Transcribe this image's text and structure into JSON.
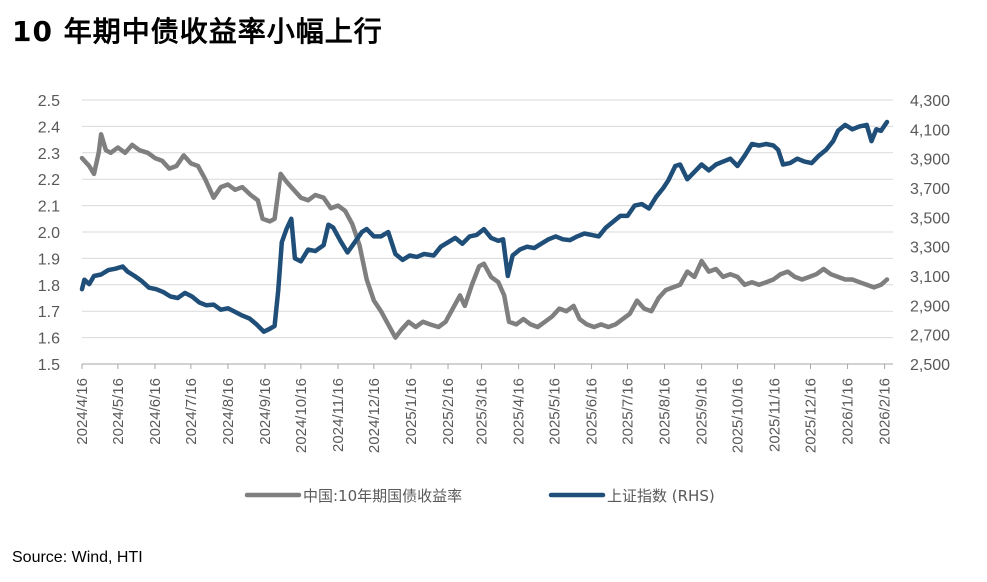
{
  "header": {
    "title": "10 年期中债收益率小幅上行"
  },
  "footer": {
    "source": "Source: Wind, HTI"
  },
  "chart_data": {
    "type": "line",
    "title": "10 年期中债收益率小幅上行",
    "y_left": {
      "ticks": [
        "2.5",
        "2.4",
        "2.3",
        "2.2",
        "2.1",
        "2.0",
        "1.9",
        "1.8",
        "1.7",
        "1.6",
        "1.5"
      ],
      "ylim": [
        1.5,
        2.5
      ]
    },
    "y_right": {
      "ticks": [
        "4,300",
        "4,100",
        "3,900",
        "3,700",
        "3,500",
        "3,300",
        "3,100",
        "2,900",
        "2,700",
        "2,500"
      ],
      "ylim": [
        2500,
        4300
      ]
    },
    "grid": "horizontal",
    "legend_position": "bottom",
    "x_ticks": [
      "2024/4/16",
      "2024/5/16",
      "2024/6/16",
      "2024/7/16",
      "2024/8/16",
      "2024/9/16",
      "2024/10/16",
      "2024/11/16",
      "2024/12/16",
      "2025/1/16",
      "2025/2/16",
      "2025/3/16",
      "2025/4/16",
      "2025/5/16",
      "2025/6/16",
      "2025/7/16",
      "2025/8/16",
      "2025/9/16",
      "2025/10/16",
      "2025/11/16",
      "2025/12/16",
      "2026/1/16",
      "2026/2/16"
    ],
    "series": [
      {
        "name": "中国:10年期国债收益率",
        "axis": "left",
        "color": "#7f7f7f",
        "points": [
          [
            "2024-04-16",
            2.28
          ],
          [
            "2024-04-22",
            2.25
          ],
          [
            "2024-04-26",
            2.22
          ],
          [
            "2024-04-30",
            2.3
          ],
          [
            "2024-05-02",
            2.37
          ],
          [
            "2024-05-06",
            2.31
          ],
          [
            "2024-05-10",
            2.3
          ],
          [
            "2024-05-16",
            2.32
          ],
          [
            "2024-05-22",
            2.3
          ],
          [
            "2024-05-28",
            2.33
          ],
          [
            "2024-06-03",
            2.31
          ],
          [
            "2024-06-10",
            2.3
          ],
          [
            "2024-06-16",
            2.28
          ],
          [
            "2024-06-22",
            2.27
          ],
          [
            "2024-06-28",
            2.24
          ],
          [
            "2024-07-04",
            2.25
          ],
          [
            "2024-07-10",
            2.29
          ],
          [
            "2024-07-16",
            2.26
          ],
          [
            "2024-07-22",
            2.25
          ],
          [
            "2024-07-28",
            2.2
          ],
          [
            "2024-08-04",
            2.13
          ],
          [
            "2024-08-10",
            2.17
          ],
          [
            "2024-08-16",
            2.18
          ],
          [
            "2024-08-22",
            2.16
          ],
          [
            "2024-08-28",
            2.17
          ],
          [
            "2024-09-04",
            2.14
          ],
          [
            "2024-09-10",
            2.12
          ],
          [
            "2024-09-14",
            2.05
          ],
          [
            "2024-09-20",
            2.04
          ],
          [
            "2024-09-24",
            2.05
          ],
          [
            "2024-09-29",
            2.22
          ],
          [
            "2024-10-04",
            2.19
          ],
          [
            "2024-10-10",
            2.16
          ],
          [
            "2024-10-16",
            2.13
          ],
          [
            "2024-10-22",
            2.12
          ],
          [
            "2024-10-28",
            2.14
          ],
          [
            "2024-11-04",
            2.13
          ],
          [
            "2024-11-10",
            2.09
          ],
          [
            "2024-11-16",
            2.1
          ],
          [
            "2024-11-22",
            2.08
          ],
          [
            "2024-11-28",
            2.03
          ],
          [
            "2024-12-04",
            1.95
          ],
          [
            "2024-12-10",
            1.82
          ],
          [
            "2024-12-16",
            1.74
          ],
          [
            "2024-12-22",
            1.7
          ],
          [
            "2024-12-28",
            1.65
          ],
          [
            "2025-01-03",
            1.6
          ],
          [
            "2025-01-08",
            1.63
          ],
          [
            "2025-01-14",
            1.66
          ],
          [
            "2025-01-20",
            1.64
          ],
          [
            "2025-01-26",
            1.66
          ],
          [
            "2025-02-01",
            1.65
          ],
          [
            "2025-02-08",
            1.64
          ],
          [
            "2025-02-14",
            1.66
          ],
          [
            "2025-02-20",
            1.71
          ],
          [
            "2025-02-26",
            1.76
          ],
          [
            "2025-03-02",
            1.72
          ],
          [
            "2025-03-08",
            1.8
          ],
          [
            "2025-03-14",
            1.87
          ],
          [
            "2025-03-18",
            1.88
          ],
          [
            "2025-03-24",
            1.83
          ],
          [
            "2025-03-30",
            1.81
          ],
          [
            "2025-04-04",
            1.76
          ],
          [
            "2025-04-08",
            1.66
          ],
          [
            "2025-04-14",
            1.65
          ],
          [
            "2025-04-20",
            1.67
          ],
          [
            "2025-04-26",
            1.65
          ],
          [
            "2025-05-02",
            1.64
          ],
          [
            "2025-05-08",
            1.66
          ],
          [
            "2025-05-14",
            1.68
          ],
          [
            "2025-05-20",
            1.71
          ],
          [
            "2025-05-26",
            1.7
          ],
          [
            "2025-06-01",
            1.72
          ],
          [
            "2025-06-06",
            1.67
          ],
          [
            "2025-06-12",
            1.65
          ],
          [
            "2025-06-18",
            1.64
          ],
          [
            "2025-06-24",
            1.65
          ],
          [
            "2025-06-30",
            1.64
          ],
          [
            "2025-07-06",
            1.65
          ],
          [
            "2025-07-12",
            1.67
          ],
          [
            "2025-07-18",
            1.69
          ],
          [
            "2025-07-24",
            1.74
          ],
          [
            "2025-07-30",
            1.71
          ],
          [
            "2025-08-05",
            1.7
          ],
          [
            "2025-08-11",
            1.75
          ],
          [
            "2025-08-17",
            1.78
          ],
          [
            "2025-08-23",
            1.79
          ],
          [
            "2025-08-29",
            1.8
          ],
          [
            "2025-09-04",
            1.85
          ],
          [
            "2025-09-10",
            1.83
          ],
          [
            "2025-09-16",
            1.89
          ],
          [
            "2025-09-22",
            1.85
          ],
          [
            "2025-09-28",
            1.86
          ],
          [
            "2025-10-04",
            1.83
          ],
          [
            "2025-10-10",
            1.84
          ],
          [
            "2025-10-16",
            1.83
          ],
          [
            "2025-10-22",
            1.8
          ],
          [
            "2025-10-28",
            1.81
          ],
          [
            "2025-11-03",
            1.8
          ],
          [
            "2025-11-09",
            1.81
          ],
          [
            "2025-11-15",
            1.82
          ],
          [
            "2025-11-21",
            1.84
          ],
          [
            "2025-11-27",
            1.85
          ],
          [
            "2025-12-03",
            1.83
          ],
          [
            "2025-12-09",
            1.82
          ],
          [
            "2025-12-15",
            1.83
          ],
          [
            "2025-12-21",
            1.84
          ],
          [
            "2025-12-27",
            1.86
          ],
          [
            "2026-01-02",
            1.84
          ],
          [
            "2026-01-08",
            1.83
          ],
          [
            "2026-01-14",
            1.82
          ],
          [
            "2026-01-20",
            1.82
          ],
          [
            "2026-01-26",
            1.81
          ],
          [
            "2026-02-01",
            1.8
          ],
          [
            "2026-02-07",
            1.79
          ],
          [
            "2026-02-13",
            1.8
          ],
          [
            "2026-02-18",
            1.82
          ]
        ]
      },
      {
        "name": "上证指数 (RHS)",
        "axis": "right",
        "color": "#1f4e79",
        "points": [
          [
            "2024-04-16",
            3010
          ],
          [
            "2024-04-18",
            3075
          ],
          [
            "2024-04-22",
            3045
          ],
          [
            "2024-04-26",
            3100
          ],
          [
            "2024-05-02",
            3110
          ],
          [
            "2024-05-08",
            3140
          ],
          [
            "2024-05-14",
            3150
          ],
          [
            "2024-05-20",
            3165
          ],
          [
            "2024-05-24",
            3130
          ],
          [
            "2024-05-30",
            3100
          ],
          [
            "2024-06-05",
            3065
          ],
          [
            "2024-06-11",
            3020
          ],
          [
            "2024-06-17",
            3010
          ],
          [
            "2024-06-23",
            2990
          ],
          [
            "2024-06-29",
            2960
          ],
          [
            "2024-07-05",
            2950
          ],
          [
            "2024-07-11",
            2985
          ],
          [
            "2024-07-17",
            2960
          ],
          [
            "2024-07-23",
            2920
          ],
          [
            "2024-07-29",
            2900
          ],
          [
            "2024-08-04",
            2905
          ],
          [
            "2024-08-10",
            2870
          ],
          [
            "2024-08-16",
            2880
          ],
          [
            "2024-08-22",
            2855
          ],
          [
            "2024-08-28",
            2830
          ],
          [
            "2024-09-03",
            2810
          ],
          [
            "2024-09-09",
            2770
          ],
          [
            "2024-09-15",
            2720
          ],
          [
            "2024-09-20",
            2740
          ],
          [
            "2024-09-24",
            2760
          ],
          [
            "2024-09-27",
            3000
          ],
          [
            "2024-09-30",
            3330
          ],
          [
            "2024-10-04",
            3420
          ],
          [
            "2024-10-08",
            3490
          ],
          [
            "2024-10-11",
            3220
          ],
          [
            "2024-10-16",
            3200
          ],
          [
            "2024-10-22",
            3280
          ],
          [
            "2024-10-28",
            3270
          ],
          [
            "2024-11-04",
            3310
          ],
          [
            "2024-11-08",
            3450
          ],
          [
            "2024-11-12",
            3430
          ],
          [
            "2024-11-18",
            3340
          ],
          [
            "2024-11-24",
            3260
          ],
          [
            "2024-11-30",
            3330
          ],
          [
            "2024-12-06",
            3400
          ],
          [
            "2024-12-10",
            3420
          ],
          [
            "2024-12-16",
            3370
          ],
          [
            "2024-12-22",
            3370
          ],
          [
            "2024-12-28",
            3400
          ],
          [
            "2025-01-03",
            3250
          ],
          [
            "2025-01-09",
            3210
          ],
          [
            "2025-01-15",
            3240
          ],
          [
            "2025-01-21",
            3230
          ],
          [
            "2025-01-27",
            3250
          ],
          [
            "2025-02-04",
            3240
          ],
          [
            "2025-02-10",
            3300
          ],
          [
            "2025-02-16",
            3330
          ],
          [
            "2025-02-22",
            3360
          ],
          [
            "2025-02-28",
            3320
          ],
          [
            "2025-03-06",
            3370
          ],
          [
            "2025-03-12",
            3380
          ],
          [
            "2025-03-18",
            3420
          ],
          [
            "2025-03-24",
            3360
          ],
          [
            "2025-03-30",
            3340
          ],
          [
            "2025-04-03",
            3350
          ],
          [
            "2025-04-07",
            3100
          ],
          [
            "2025-04-11",
            3240
          ],
          [
            "2025-04-17",
            3280
          ],
          [
            "2025-04-23",
            3300
          ],
          [
            "2025-04-29",
            3290
          ],
          [
            "2025-05-05",
            3320
          ],
          [
            "2025-05-11",
            3350
          ],
          [
            "2025-05-17",
            3370
          ],
          [
            "2025-05-23",
            3350
          ],
          [
            "2025-05-29",
            3345
          ],
          [
            "2025-06-04",
            3370
          ],
          [
            "2025-06-10",
            3390
          ],
          [
            "2025-06-16",
            3380
          ],
          [
            "2025-06-22",
            3370
          ],
          [
            "2025-06-28",
            3430
          ],
          [
            "2025-07-04",
            3470
          ],
          [
            "2025-07-10",
            3510
          ],
          [
            "2025-07-16",
            3510
          ],
          [
            "2025-07-22",
            3580
          ],
          [
            "2025-07-28",
            3590
          ],
          [
            "2025-08-03",
            3560
          ],
          [
            "2025-08-09",
            3640
          ],
          [
            "2025-08-15",
            3700
          ],
          [
            "2025-08-19",
            3750
          ],
          [
            "2025-08-25",
            3850
          ],
          [
            "2025-08-29",
            3860
          ],
          [
            "2025-09-04",
            3760
          ],
          [
            "2025-09-10",
            3810
          ],
          [
            "2025-09-16",
            3860
          ],
          [
            "2025-09-22",
            3820
          ],
          [
            "2025-09-28",
            3860
          ],
          [
            "2025-10-04",
            3880
          ],
          [
            "2025-10-10",
            3900
          ],
          [
            "2025-10-16",
            3850
          ],
          [
            "2025-10-22",
            3920
          ],
          [
            "2025-10-28",
            4000
          ],
          [
            "2025-11-03",
            3990
          ],
          [
            "2025-11-09",
            4000
          ],
          [
            "2025-11-15",
            3990
          ],
          [
            "2025-11-19",
            3960
          ],
          [
            "2025-11-23",
            3860
          ],
          [
            "2025-11-29",
            3870
          ],
          [
            "2025-12-05",
            3900
          ],
          [
            "2025-12-11",
            3880
          ],
          [
            "2025-12-17",
            3870
          ],
          [
            "2025-12-23",
            3920
          ],
          [
            "2025-12-29",
            3960
          ],
          [
            "2026-01-04",
            4020
          ],
          [
            "2026-01-08",
            4090
          ],
          [
            "2026-01-14",
            4130
          ],
          [
            "2026-01-20",
            4100
          ],
          [
            "2026-01-26",
            4120
          ],
          [
            "2026-02-01",
            4130
          ],
          [
            "2026-02-05",
            4020
          ],
          [
            "2026-02-09",
            4100
          ],
          [
            "2026-02-13",
            4090
          ],
          [
            "2026-02-18",
            4150
          ]
        ]
      }
    ]
  }
}
